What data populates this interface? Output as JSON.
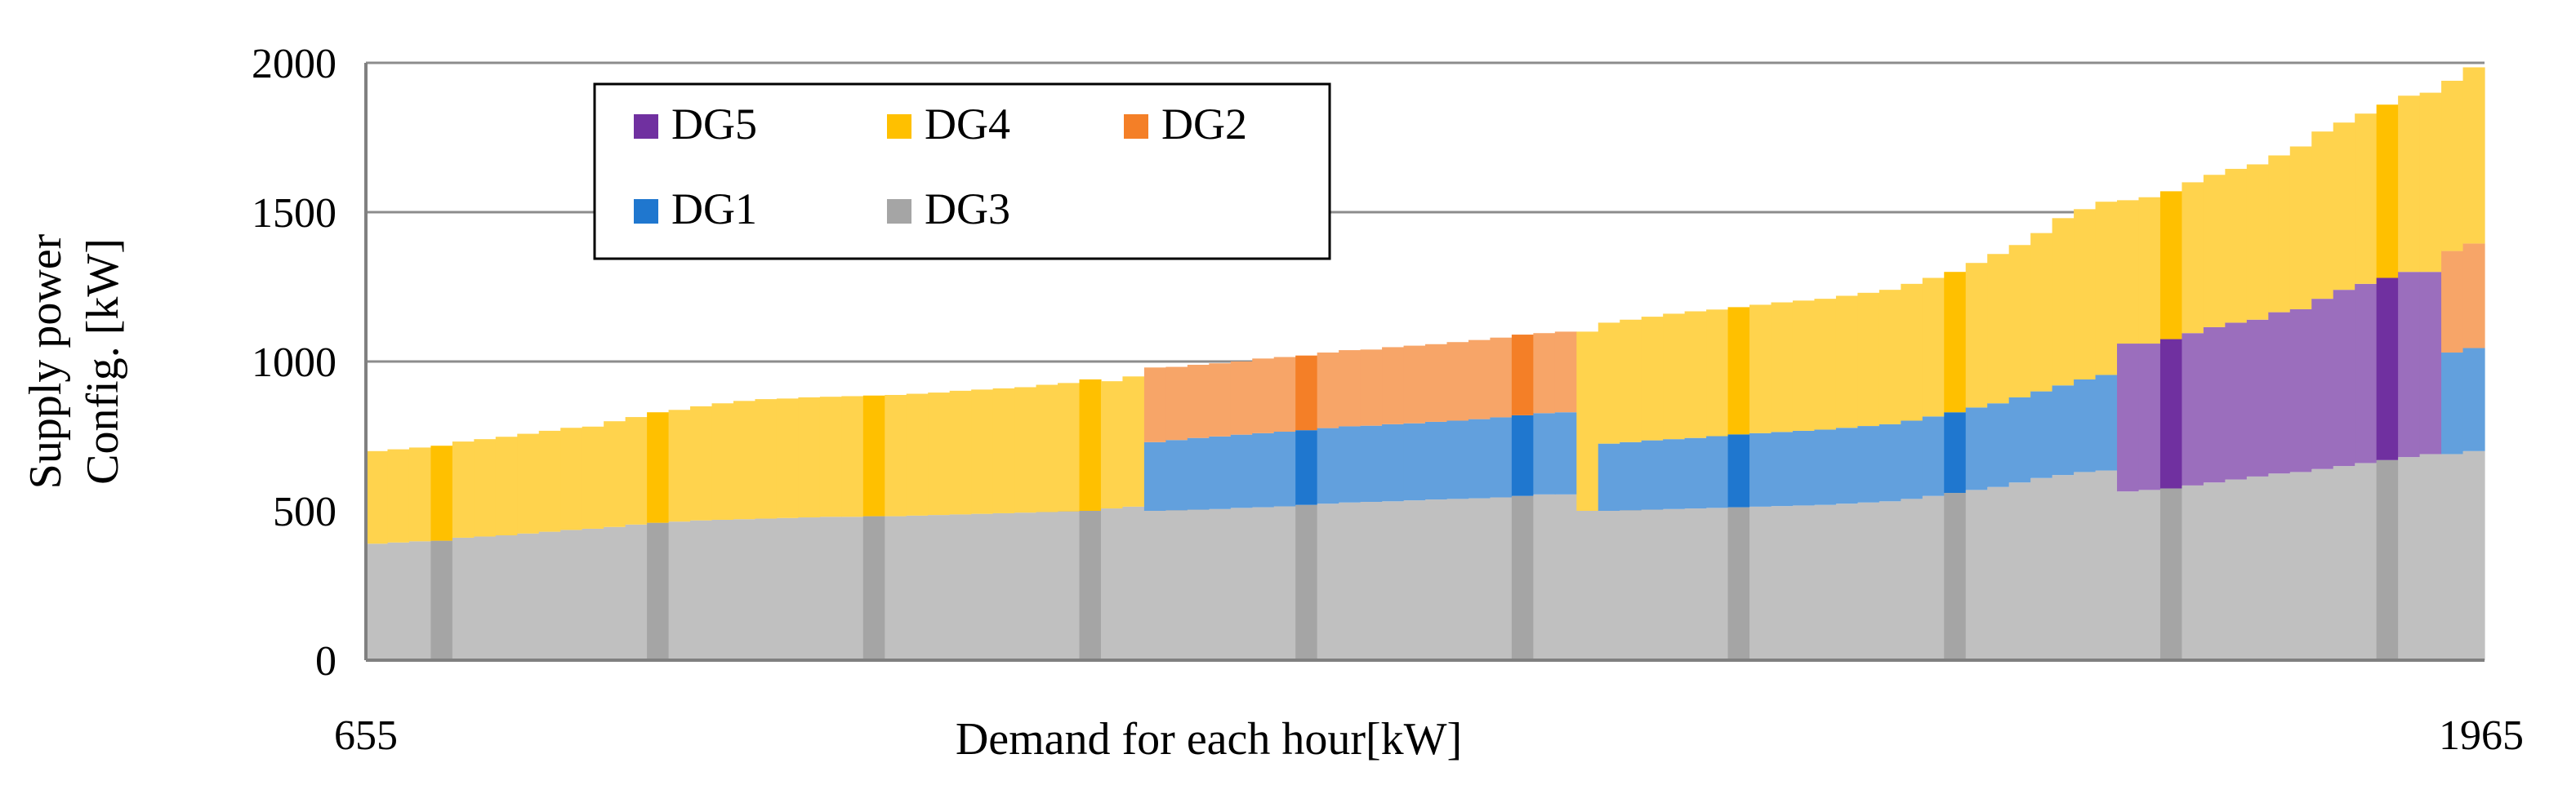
{
  "chart_data": {
    "type": "bar",
    "stacked": true,
    "ylabel_lines": [
      "Supply power",
      "Config. [kW]"
    ],
    "xlabel": "Demand for each hour[kW]",
    "x_start_label": "655",
    "x_end_label": "1965",
    "ylim": [
      0,
      2000
    ],
    "yticks": [
      "0",
      "500",
      "1000",
      "1500",
      "2000"
    ],
    "grid": true,
    "legend_position": "top-left",
    "legend": [
      {
        "name": "DG5",
        "color": "#7030A0"
      },
      {
        "name": "DG4",
        "color": "#FFC000"
      },
      {
        "name": "DG2",
        "color": "#F47F27"
      },
      {
        "name": "DG1",
        "color": "#1F77CF"
      },
      {
        "name": "DG3",
        "color": "#A5A5A5"
      }
    ],
    "stack_order": [
      "DG3",
      "DG1",
      "DG2",
      "DG5",
      "DG4"
    ],
    "series_colors": {
      "DG3": "#A5A5A5",
      "DG1": "#1F77CF",
      "DG2": "#F47F27",
      "DG5": "#7030A0",
      "DG4": "#FFC000"
    },
    "highlight_step": 10,
    "highlight_offset": 3,
    "bars": [
      {
        "DG3": 390,
        "DG4": 310
      },
      {
        "DG3": 394,
        "DG4": 312
      },
      {
        "DG3": 398,
        "DG4": 314
      },
      {
        "DG3": 400,
        "DG4": 318
      },
      {
        "DG3": 410,
        "DG4": 322
      },
      {
        "DG3": 414,
        "DG4": 326
      },
      {
        "DG3": 418,
        "DG4": 330
      },
      {
        "DG3": 424,
        "DG4": 334
      },
      {
        "DG3": 430,
        "DG4": 338
      },
      {
        "DG3": 436,
        "DG4": 342
      },
      {
        "DG3": 440,
        "DG4": 342
      },
      {
        "DG3": 446,
        "DG4": 354
      },
      {
        "DG3": 454,
        "DG4": 360
      },
      {
        "DG3": 460,
        "DG4": 370
      },
      {
        "DG3": 464,
        "DG4": 374
      },
      {
        "DG3": 468,
        "DG4": 382
      },
      {
        "DG3": 470,
        "DG4": 390
      },
      {
        "DG3": 472,
        "DG4": 396
      },
      {
        "DG3": 474,
        "DG4": 400
      },
      {
        "DG3": 476,
        "DG4": 400
      },
      {
        "DG3": 478,
        "DG4": 402
      },
      {
        "DG3": 480,
        "DG4": 402
      },
      {
        "DG3": 480,
        "DG4": 404
      },
      {
        "DG3": 482,
        "DG4": 404
      },
      {
        "DG3": 482,
        "DG4": 406
      },
      {
        "DG3": 484,
        "DG4": 408
      },
      {
        "DG3": 486,
        "DG4": 410
      },
      {
        "DG3": 488,
        "DG4": 414
      },
      {
        "DG3": 490,
        "DG4": 416
      },
      {
        "DG3": 492,
        "DG4": 418
      },
      {
        "DG3": 494,
        "DG4": 420
      },
      {
        "DG3": 496,
        "DG4": 426
      },
      {
        "DG3": 498,
        "DG4": 430
      },
      {
        "DG3": 500,
        "DG4": 440
      },
      {
        "DG3": 508,
        "DG4": 426
      },
      {
        "DG3": 514,
        "DG4": 436
      },
      {
        "DG3": 500,
        "DG1": 230,
        "DG2": 250
      },
      {
        "DG3": 502,
        "DG1": 235,
        "DG2": 245
      },
      {
        "DG3": 504,
        "DG1": 240,
        "DG2": 245
      },
      {
        "DG3": 506,
        "DG1": 243,
        "DG2": 245
      },
      {
        "DG3": 510,
        "DG1": 245,
        "DG2": 245
      },
      {
        "DG3": 512,
        "DG1": 248,
        "DG2": 250
      },
      {
        "DG3": 515,
        "DG1": 250,
        "DG2": 250
      },
      {
        "DG3": 520,
        "DG1": 250,
        "DG2": 250
      },
      {
        "DG3": 524,
        "DG1": 253,
        "DG2": 253
      },
      {
        "DG3": 528,
        "DG1": 255,
        "DG2": 255
      },
      {
        "DG3": 530,
        "DG1": 255,
        "DG2": 255
      },
      {
        "DG3": 532,
        "DG1": 258,
        "DG2": 258
      },
      {
        "DG3": 535,
        "DG1": 258,
        "DG2": 260
      },
      {
        "DG3": 538,
        "DG1": 260,
        "DG2": 260
      },
      {
        "DG3": 540,
        "DG1": 262,
        "DG2": 263
      },
      {
        "DG3": 542,
        "DG1": 265,
        "DG2": 265
      },
      {
        "DG3": 545,
        "DG1": 268,
        "DG2": 267
      },
      {
        "DG3": 550,
        "DG1": 270,
        "DG2": 270
      },
      {
        "DG3": 555,
        "DG1": 272,
        "DG2": 268
      },
      {
        "DG3": 555,
        "DG1": 275,
        "DG2": 270
      },
      {
        "DG3": 500,
        "DG4": 600
      },
      {
        "DG3": 500,
        "DG1": 225,
        "DG4": 405
      },
      {
        "DG3": 502,
        "DG1": 228,
        "DG4": 410
      },
      {
        "DG3": 504,
        "DG1": 232,
        "DG4": 414
      },
      {
        "DG3": 506,
        "DG1": 234,
        "DG4": 420
      },
      {
        "DG3": 508,
        "DG1": 236,
        "DG4": 424
      },
      {
        "DG3": 510,
        "DG1": 240,
        "DG4": 424
      },
      {
        "DG3": 512,
        "DG1": 244,
        "DG4": 426
      },
      {
        "DG3": 514,
        "DG1": 246,
        "DG4": 430
      },
      {
        "DG3": 516,
        "DG1": 248,
        "DG4": 434
      },
      {
        "DG3": 518,
        "DG1": 250,
        "DG4": 436
      },
      {
        "DG3": 520,
        "DG1": 252,
        "DG4": 438
      },
      {
        "DG3": 524,
        "DG1": 254,
        "DG4": 442
      },
      {
        "DG3": 528,
        "DG1": 256,
        "DG4": 446
      },
      {
        "DG3": 532,
        "DG1": 258,
        "DG4": 450
      },
      {
        "DG3": 540,
        "DG1": 262,
        "DG4": 458
      },
      {
        "DG3": 550,
        "DG1": 266,
        "DG4": 464
      },
      {
        "DG3": 560,
        "DG1": 270,
        "DG4": 470
      },
      {
        "DG3": 570,
        "DG1": 276,
        "DG4": 484
      },
      {
        "DG3": 580,
        "DG1": 280,
        "DG4": 500
      },
      {
        "DG3": 595,
        "DG1": 285,
        "DG4": 510
      },
      {
        "DG3": 610,
        "DG1": 290,
        "DG4": 530
      },
      {
        "DG3": 620,
        "DG1": 300,
        "DG4": 560
      },
      {
        "DG3": 630,
        "DG1": 310,
        "DG4": 570
      },
      {
        "DG3": 635,
        "DG1": 320,
        "DG4": 580
      },
      {
        "DG3": 565,
        "DG4": 480,
        "DG5": 495
      },
      {
        "DG3": 570,
        "DG4": 490,
        "DG5": 490
      },
      {
        "DG3": 575,
        "DG4": 495,
        "DG5": 500
      },
      {
        "DG3": 585,
        "DG4": 505,
        "DG5": 510
      },
      {
        "DG3": 595,
        "DG4": 510,
        "DG5": 520
      },
      {
        "DG3": 605,
        "DG4": 515,
        "DG5": 525
      },
      {
        "DG3": 615,
        "DG4": 520,
        "DG5": 525
      },
      {
        "DG3": 625,
        "DG4": 525,
        "DG5": 540
      },
      {
        "DG3": 630,
        "DG4": 545,
        "DG5": 545
      },
      {
        "DG3": 640,
        "DG4": 560,
        "DG5": 570
      },
      {
        "DG3": 650,
        "DG4": 560,
        "DG5": 590
      },
      {
        "DG3": 660,
        "DG4": 570,
        "DG5": 600
      },
      {
        "DG3": 670,
        "DG4": 580,
        "DG5": 610
      },
      {
        "DG3": 680,
        "DG4": 590,
        "DG5": 620
      },
      {
        "DG3": 690,
        "DG4": 600,
        "DG5": 610
      },
      {
        "DG3": 690,
        "DG1": 340,
        "DG2": 340,
        "DG4": 570
      },
      {
        "DG3": 700,
        "DG1": 345,
        "DG2": 350,
        "DG4": 590
      }
    ]
  }
}
